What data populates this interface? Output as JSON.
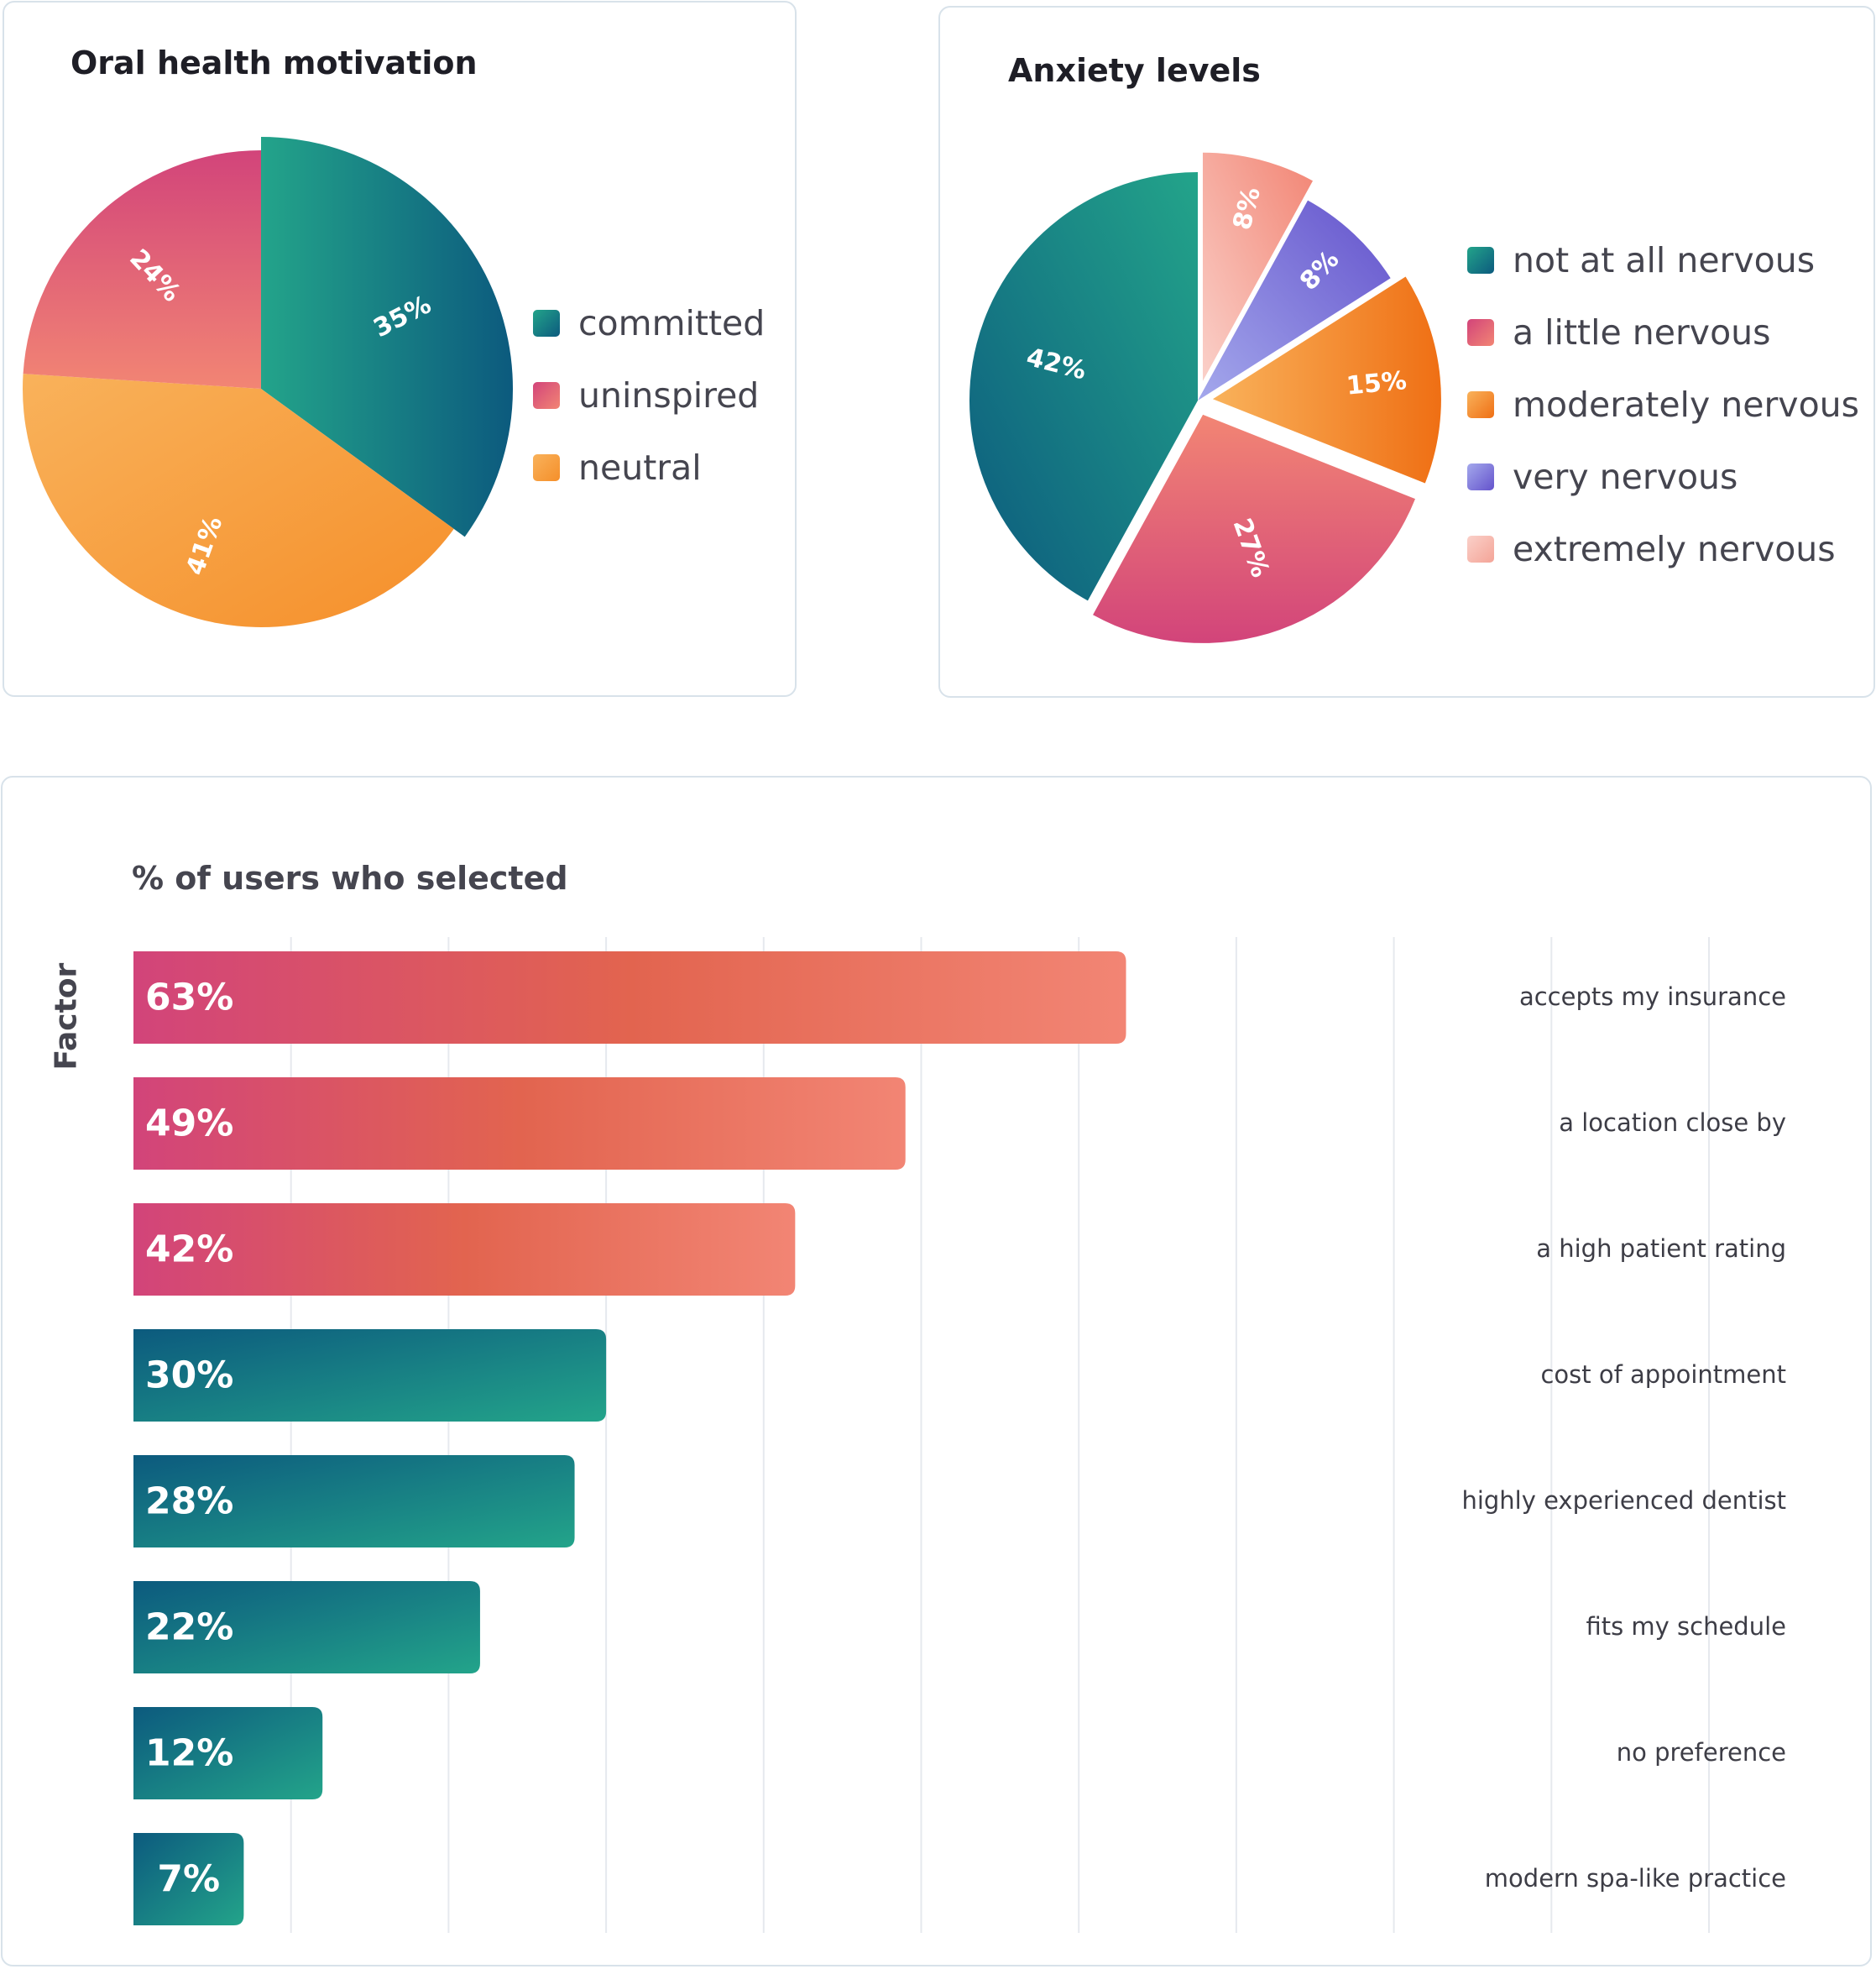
{
  "chart_data": [
    {
      "type": "pie",
      "title": "Oral health motivation",
      "slices": [
        {
          "label": "committed",
          "value": 35,
          "display": "35%"
        },
        {
          "label": "neutral",
          "value": 41,
          "display": "41%"
        },
        {
          "label": "uninspired",
          "value": 24,
          "display": "24%"
        }
      ],
      "legend": [
        "committed",
        "uninspired",
        "neutral"
      ],
      "legend_position": "right",
      "exploded": "committed"
    },
    {
      "type": "pie",
      "title": "Anxiety levels",
      "slices": [
        {
          "label": "extremely nervous",
          "value": 8,
          "display": "8%"
        },
        {
          "label": "very nervous",
          "value": 8,
          "display": "8%"
        },
        {
          "label": "moderately nervous",
          "value": 15,
          "display": "15%"
        },
        {
          "label": "a little nervous",
          "value": 27,
          "display": "27%"
        },
        {
          "label": "not at all nervous",
          "value": 42,
          "display": "42%"
        }
      ],
      "legend": [
        "not at all nervous",
        "a little nervous",
        "moderately nervous",
        "very nervous",
        "extremely nervous"
      ],
      "legend_position": "right",
      "exploded": [
        "extremely nervous",
        "moderately nervous",
        "a little nervous"
      ]
    },
    {
      "type": "bar",
      "orientation": "horizontal",
      "title": "% of users who selected",
      "ylabel": "Factor",
      "xlim": [
        0,
        100
      ],
      "grid": true,
      "categories": [
        "accepts my insurance",
        "a location close by",
        "a high patient rating",
        "cost of appointment",
        "highly experienced dentist",
        "fits my schedule",
        "no preference",
        "modern spa-like practice"
      ],
      "values": [
        63,
        49,
        42,
        30,
        28,
        22,
        12,
        7
      ],
      "labels": [
        "63%",
        "49%",
        "42%",
        "30%",
        "28%",
        "22%",
        "12%",
        "7%"
      ]
    }
  ],
  "colors": {
    "teal_dark": "#0c5a7e",
    "teal_light": "#23a48a",
    "pink": "#d2447a",
    "coral": "#e2644f",
    "salmon": "#f28574",
    "orange": "#f58f2a",
    "orange_light": "#f9b25b",
    "orange_deep": "#ef6f14",
    "purple": "#6453cc",
    "purple_light": "#a4a8ec",
    "peach": "#f4a497"
  }
}
